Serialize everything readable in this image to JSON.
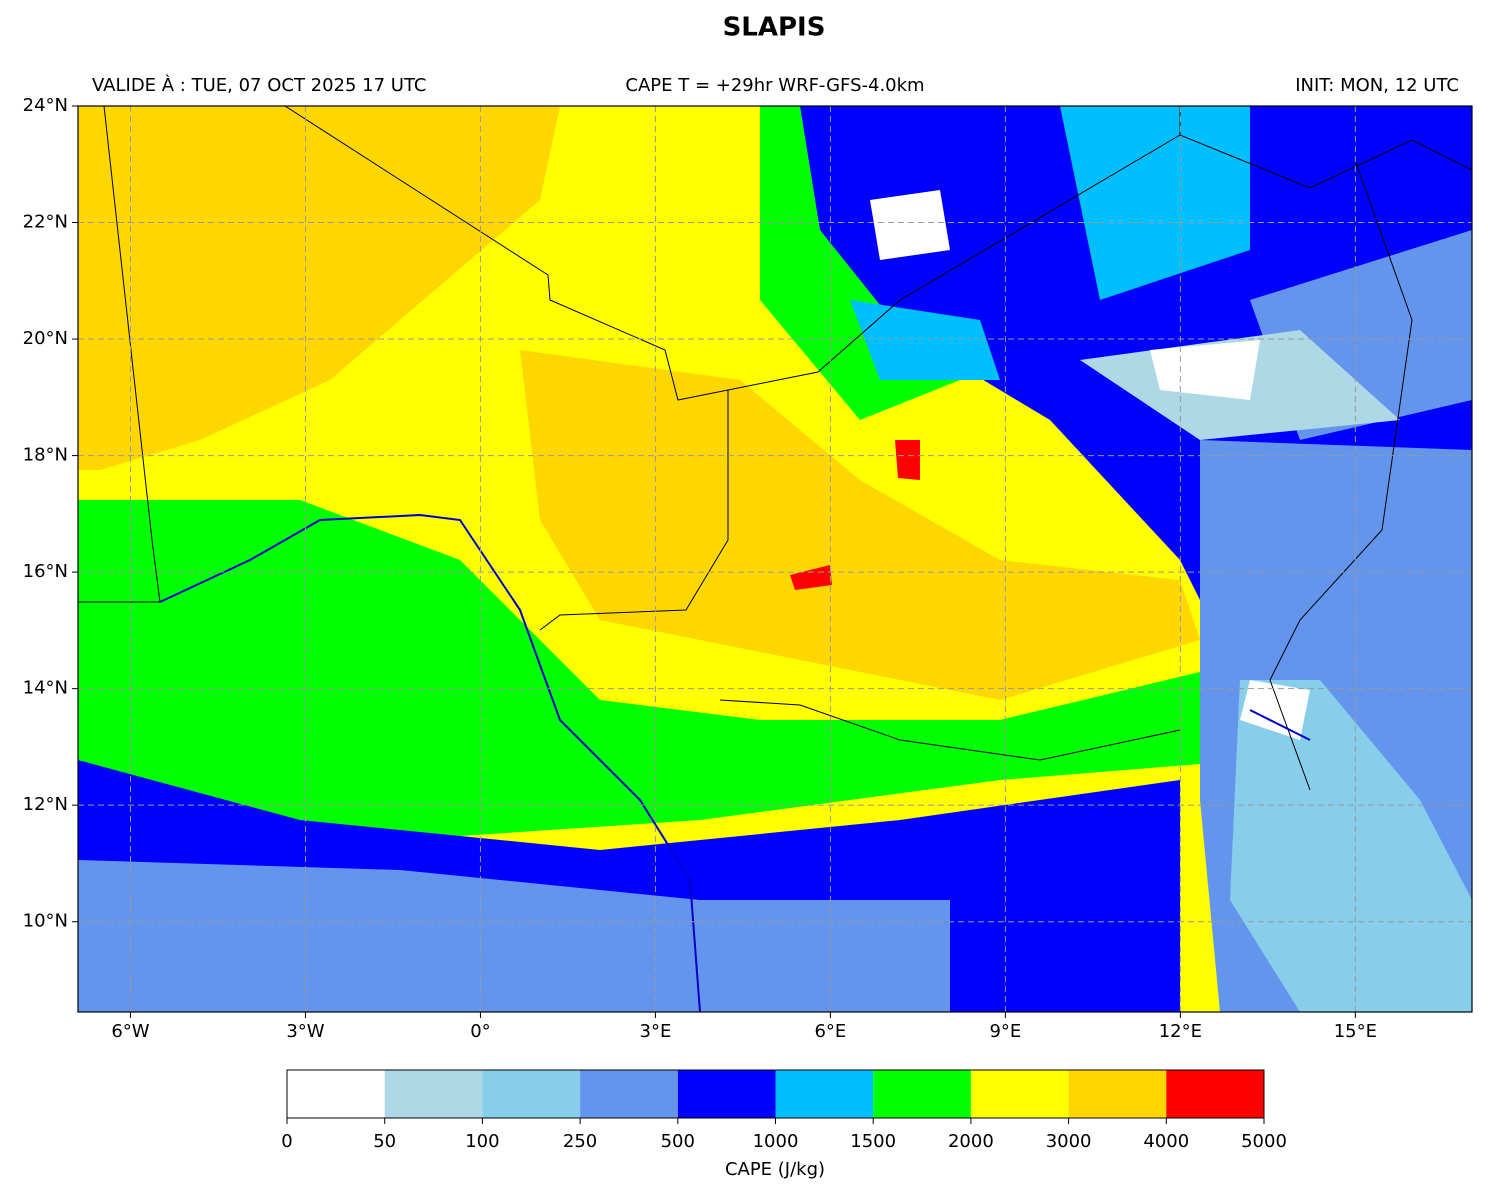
{
  "title": "SLAPIS",
  "header": {
    "left": "VALIDE À : TUE, 07 OCT 2025 17 UTC",
    "center": "CAPE T = +29hr WRF-GFS-4.0km",
    "right": "INIT: MON, 12 UTC"
  },
  "map": {
    "xlim": [
      -6.9,
      17
    ],
    "ylim": [
      8.45,
      24
    ],
    "grid": true,
    "xticks": [
      {
        "value": -6,
        "label": "6°W"
      },
      {
        "value": -3,
        "label": "3°W"
      },
      {
        "value": 0,
        "label": "0°"
      },
      {
        "value": 3,
        "label": "3°E"
      },
      {
        "value": 6,
        "label": "6°E"
      },
      {
        "value": 9,
        "label": "9°E"
      },
      {
        "value": 12,
        "label": "12°E"
      },
      {
        "value": 15,
        "label": "15°E"
      }
    ],
    "yticks": [
      {
        "value": 10,
        "label": "10°N"
      },
      {
        "value": 12,
        "label": "12°N"
      },
      {
        "value": 14,
        "label": "14°N"
      },
      {
        "value": 16,
        "label": "16°N"
      },
      {
        "value": 18,
        "label": "18°N"
      },
      {
        "value": 20,
        "label": "20°N"
      },
      {
        "value": 22,
        "label": "22°N"
      },
      {
        "value": 24,
        "label": "24°N"
      }
    ]
  },
  "colorbar": {
    "label": "CAPE (J/kg)",
    "bounds": [
      0,
      50,
      100,
      250,
      500,
      1000,
      1500,
      2000,
      3000,
      4000,
      5000
    ],
    "colors": [
      "#ffffff",
      "#add8e6",
      "#87ceeb",
      "#6495ed",
      "#0000ff",
      "#00bfff",
      "#00ff00",
      "#ffff00",
      "#ffd700",
      "#ff0000"
    ]
  }
}
